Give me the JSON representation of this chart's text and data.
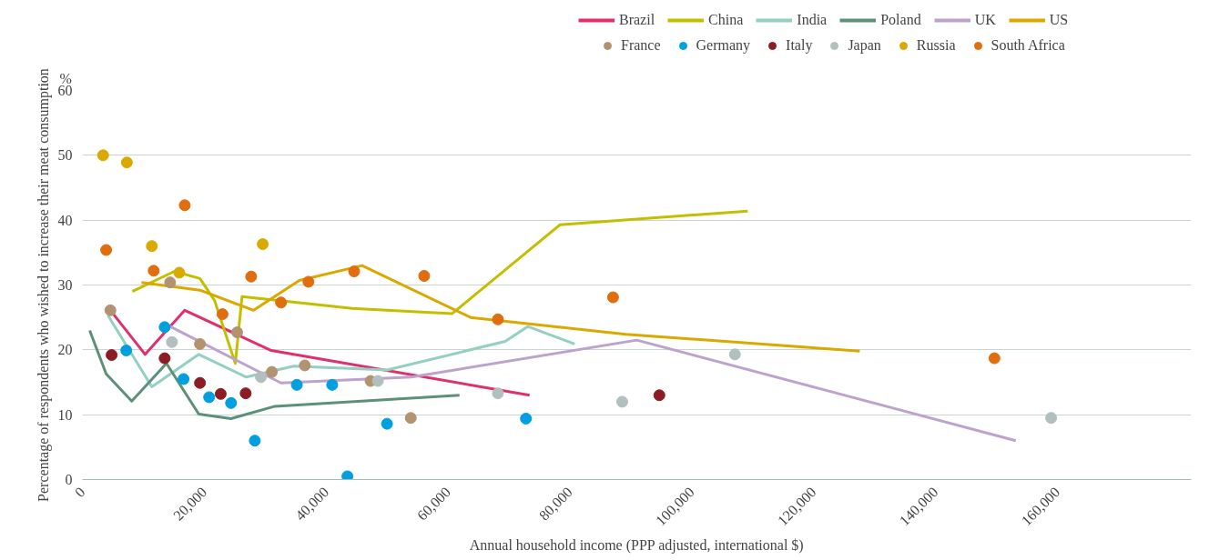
{
  "chart_data": {
    "type": "line",
    "xlabel": "Annual household income (PPP adjusted, international $)",
    "ylabel": "Percentage of respondents who wished to increase their meat consumption",
    "annotations": [
      "%"
    ],
    "xlim": [
      0,
      182000
    ],
    "xticks": [
      0,
      {
        "value": 20000,
        "label": "20,000"
      },
      {
        "value": 40000,
        "label": "40,000"
      },
      {
        "value": 60000,
        "label": "60,000"
      },
      {
        "value": 80000,
        "label": "80,000"
      },
      {
        "value": 100000,
        "label": "100,000"
      },
      {
        "value": 120000,
        "label": "120,000"
      },
      {
        "value": 140000,
        "label": "140,000"
      },
      {
        "value": 160000,
        "label": "160,000"
      }
    ],
    "ylim": [
      0,
      60
    ],
    "yticks": [
      0,
      10,
      20,
      30,
      40,
      50,
      60
    ],
    "grid": "y",
    "legend": "top right",
    "series": [
      {
        "name": "Brazil",
        "type": "line",
        "color": "#e0306b",
        "x": [
          4600,
          10300,
          16800,
          31000,
          73400
        ],
        "values": [
          26.1,
          19.3,
          26.1,
          19.9,
          13.0
        ]
      },
      {
        "name": "China",
        "type": "line",
        "color": "#c3be00",
        "x": [
          8200,
          15100,
          19300,
          21700,
          25100,
          26200,
          44300,
          60700,
          78400,
          109200
        ],
        "values": [
          29.0,
          32.1,
          31.0,
          27.6,
          17.9,
          28.2,
          26.4,
          25.6,
          39.3,
          41.4
        ]
      },
      {
        "name": "India",
        "type": "line",
        "color": "#94d0c2",
        "x": [
          4200,
          11400,
          19100,
          26900,
          34700,
          50000,
          69400,
          73100,
          80800
        ],
        "values": [
          25.3,
          14.3,
          19.3,
          15.8,
          17.5,
          16.9,
          21.3,
          23.6,
          20.9
        ]
      },
      {
        "name": "Poland",
        "type": "line",
        "color": "#5c9179",
        "x": [
          1200,
          3900,
          8100,
          13800,
          19100,
          24400,
          31600,
          61900
        ],
        "values": [
          23.0,
          16.3,
          12.1,
          17.9,
          10.1,
          9.4,
          11.3,
          13.0
        ]
      },
      {
        "name": "UK",
        "type": "line",
        "color": "#bca2cc",
        "x": [
          14400,
          32600,
          54000,
          91000,
          153200
        ],
        "values": [
          23.6,
          14.9,
          15.8,
          21.5,
          6.0
        ]
      },
      {
        "name": "US",
        "type": "line",
        "color": "#dba800",
        "x": [
          9700,
          19300,
          28100,
          35600,
          45900,
          63700,
          89200,
          127600
        ],
        "values": [
          30.4,
          29.2,
          26.1,
          30.7,
          33.0,
          25.0,
          22.4,
          19.8
        ]
      },
      {
        "name": "France",
        "type": "scatter",
        "color": "#b3926f",
        "x": [
          4600,
          14400,
          19300,
          25400,
          31100,
          36500,
          47300,
          53900
        ],
        "values": [
          26.1,
          30.4,
          20.9,
          22.7,
          16.6,
          17.6,
          15.2,
          9.5
        ]
      },
      {
        "name": "Germany",
        "type": "scatter",
        "color": "#00a0e0",
        "x": [
          7200,
          13500,
          16600,
          20800,
          24400,
          28300,
          35200,
          41000,
          43500,
          50000,
          72800
        ],
        "values": [
          19.9,
          23.5,
          15.5,
          12.7,
          11.8,
          6.0,
          14.6,
          14.6,
          0.5,
          8.6,
          9.4
        ]
      },
      {
        "name": "Italy",
        "type": "scatter",
        "color": "#8b1c24",
        "x": [
          4800,
          13500,
          19300,
          22700,
          26800,
          94700
        ],
        "values": [
          19.2,
          18.7,
          14.9,
          13.2,
          13.3,
          13.0
        ]
      },
      {
        "name": "Japan",
        "type": "scatter",
        "color": "#b2bfbf",
        "x": [
          14700,
          29300,
          48500,
          68200,
          88600,
          107100,
          159000
        ],
        "values": [
          21.2,
          15.8,
          15.2,
          13.3,
          12.0,
          19.3,
          9.5
        ]
      },
      {
        "name": "Russia",
        "type": "scatter",
        "color": "#daa900",
        "x": [
          3400,
          7300,
          11400,
          15900,
          29600
        ],
        "values": [
          50.0,
          48.9,
          36.0,
          31.9,
          36.3
        ]
      },
      {
        "name": "South Africa",
        "type": "scatter",
        "color": "#e06d0e",
        "x": [
          3900,
          11700,
          16800,
          23000,
          27700,
          32600,
          37100,
          44600,
          56100,
          68200,
          87100,
          149700
        ],
        "values": [
          35.4,
          32.2,
          42.3,
          25.5,
          31.3,
          27.3,
          30.5,
          32.1,
          31.4,
          24.7,
          28.1,
          18.7
        ]
      }
    ]
  }
}
